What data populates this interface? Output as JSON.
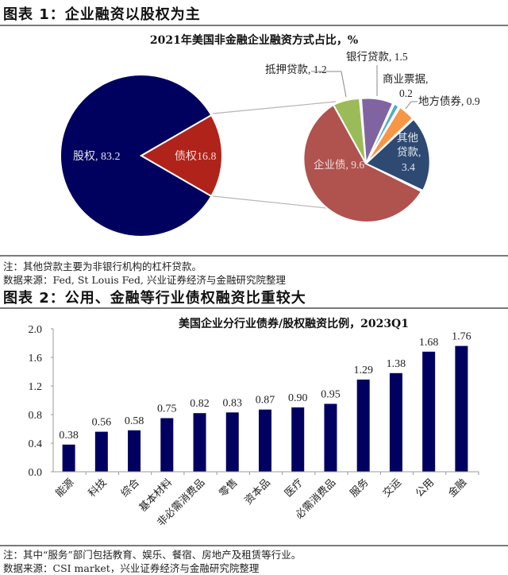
{
  "figure1": {
    "heading": "图表 1：企业融资以股权为主",
    "chart_title": "2021年美国非金融企业融资方式占比，%",
    "note": "注：其他贷款主要为非银行机构的杠杆贷款。",
    "source": "数据来源：Fed, St Louis Fed, 兴业证券经济与金融研究院整理",
    "main_pie": {
      "slices": [
        {
          "label": "股权",
          "value": 83.2,
          "display": "股权, 83.2",
          "color": "#00005e"
        },
        {
          "label": "债权",
          "value": 16.8,
          "display": "债权16.8",
          "color": "#b0231a"
        }
      ]
    },
    "sub_pie": {
      "slices": [
        {
          "label": "企业债",
          "value": 9.6,
          "display": "企业债, 9.6",
          "color": "#b0524e"
        },
        {
          "label": "抵押贷款",
          "value": 1.2,
          "display": "抵押贷款, 1.2",
          "color": "#9bbb59"
        },
        {
          "label": "银行贷款",
          "value": 1.5,
          "display": "银行贷款, 1.5",
          "color": "#8064a2"
        },
        {
          "label": "商业票据",
          "value": 0.2,
          "display_line1": "商业票据,",
          "display_line2": "0.2",
          "color": "#4bacc6"
        },
        {
          "label": "地方债券",
          "value": 0.9,
          "display": "地方债券, 0.9",
          "color": "#f79646"
        },
        {
          "label": "其他贷款",
          "value": 3.4,
          "display_line1": "其他",
          "display_line2": "贷款,",
          "display_line3": "3.4",
          "color": "#2e4a72"
        }
      ]
    }
  },
  "figure2": {
    "heading": "图表 2：公用、金融等行业债权融资比重较大",
    "chart_title": "美国企业分行业债券/股权融资比例，2023Q1",
    "note": "注：其中“服务”部门包括教育、娱乐、餐宿、房地产及租赁等行业。",
    "source": "数据来源：CSI market，兴业证券经济与金融研究院整理",
    "y_ticks": [
      "2.0",
      "1.6",
      "1.2",
      "0.8",
      "0.4",
      "0.0"
    ],
    "bars": [
      {
        "category": "能源",
        "value": "0.38"
      },
      {
        "category": "科技",
        "value": "0.56"
      },
      {
        "category": "综合",
        "value": "0.58"
      },
      {
        "category": "基本材料",
        "value": "0.75"
      },
      {
        "category": "非必需消费品",
        "value": "0.82"
      },
      {
        "category": "零售",
        "value": "0.83"
      },
      {
        "category": "资本品",
        "value": "0.87"
      },
      {
        "category": "医疗",
        "value": "0.90"
      },
      {
        "category": "必需消费品",
        "value": "0.95"
      },
      {
        "category": "服务",
        "value": "1.29"
      },
      {
        "category": "交运",
        "value": "1.38"
      },
      {
        "category": "公用",
        "value": "1.68"
      },
      {
        "category": "金融",
        "value": "1.76"
      }
    ],
    "bar_color": "#000060"
  },
  "chart_data": [
    {
      "type": "pie",
      "title": "2021年美国非金融企业融资方式占比，%",
      "categories": [
        "股权",
        "债权"
      ],
      "values": [
        83.2,
        16.8
      ],
      "sub_pie_of": "债权",
      "sub_categories": [
        "企业债",
        "抵押贷款",
        "银行贷款",
        "商业票据",
        "地方债券",
        "其他贷款"
      ],
      "sub_values": [
        9.6,
        1.2,
        1.5,
        0.2,
        0.9,
        3.4
      ],
      "colors": [
        "#00005e",
        "#b0231a"
      ],
      "sub_colors": [
        "#b0524e",
        "#9bbb59",
        "#8064a2",
        "#4bacc6",
        "#f79646",
        "#2e4a72"
      ]
    },
    {
      "type": "bar",
      "title": "美国企业分行业债券/股权融资比例，2023Q1",
      "categories": [
        "能源",
        "科技",
        "综合",
        "基本材料",
        "非必需消费品",
        "零售",
        "资本品",
        "医疗",
        "必需消费品",
        "服务",
        "交运",
        "公用",
        "金融"
      ],
      "values": [
        0.38,
        0.56,
        0.58,
        0.75,
        0.82,
        0.83,
        0.87,
        0.9,
        0.95,
        1.29,
        1.38,
        1.68,
        1.76
      ],
      "xlabel": "",
      "ylabel": "",
      "ylim": [
        0,
        2.0
      ],
      "yticks": [
        0.0,
        0.4,
        0.8,
        1.2,
        1.6,
        2.0
      ],
      "grid": false,
      "data_labels": true
    }
  ]
}
